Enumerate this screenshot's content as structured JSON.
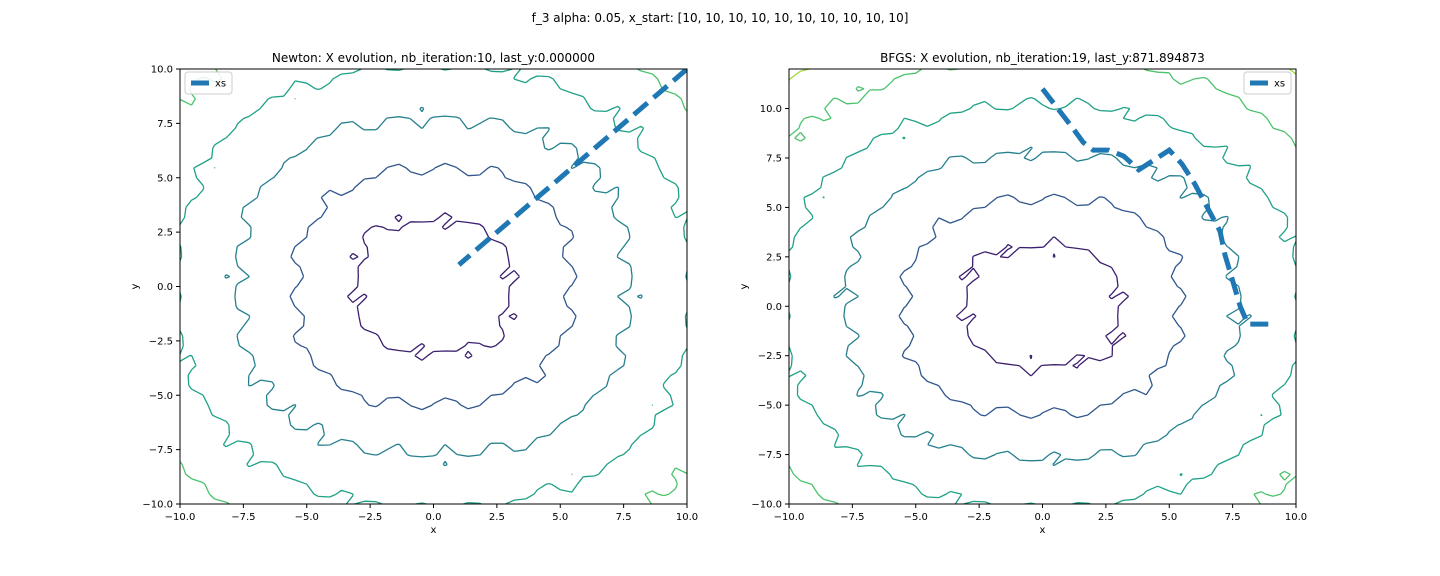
{
  "figure": {
    "suptitle": "f_3 alpha: 0.05, x_start: [10, 10, 10, 10, 10, 10, 10, 10, 10, 10]"
  },
  "chart_data": [
    {
      "type": "line",
      "title": "Newton: X evolution, nb_iteration:10, last_y:0.000000",
      "xlabel": "x",
      "ylabel": "y",
      "xlim": [
        -10,
        10
      ],
      "ylim": [
        -10,
        10
      ],
      "xticks": [
        -10,
        -7.5,
        -5,
        -2.5,
        0,
        2.5,
        5,
        7.5,
        10
      ],
      "xtick_labels": [
        "−10.0",
        "−7.5",
        "−5.0",
        "−2.5",
        "0.0",
        "2.5",
        "5.0",
        "7.5",
        "10.0"
      ],
      "yticks": [
        -10,
        -7.5,
        -5,
        -2.5,
        0,
        2.5,
        5,
        7.5,
        10
      ],
      "ytick_labels": [
        "−10.0",
        "−7.5",
        "−5.0",
        "−2.5",
        "0.0",
        "2.5",
        "5.0",
        "7.5",
        "10.0"
      ],
      "legend": {
        "location": "upper-left",
        "entries": [
          "xs"
        ]
      },
      "grid": false,
      "contour": {
        "levels": [
          "#3b1f6e",
          "#30568c",
          "#25808e",
          "#1fa187",
          "#4cc26c",
          "#a0da39"
        ]
      },
      "series": [
        {
          "name": "xs",
          "style": "dashed",
          "color": "#1f77b4",
          "x": [
            10,
            9.0,
            8.0,
            7.0,
            6.0,
            5.0,
            4.0,
            3.0,
            2.0,
            1.0
          ],
          "y": [
            10,
            9.0,
            8.0,
            7.0,
            6.0,
            5.0,
            4.0,
            3.0,
            2.0,
            1.0
          ]
        }
      ]
    },
    {
      "type": "line",
      "title": "BFGS: X evolution, nb_iteration:19, last_y:871.894873",
      "xlabel": "x",
      "ylabel": "y",
      "xlim": [
        -10,
        10
      ],
      "ylim": [
        -10,
        12
      ],
      "xticks": [
        -10,
        -7.5,
        -5,
        -2.5,
        0,
        2.5,
        5,
        7.5,
        10
      ],
      "xtick_labels": [
        "−10.0",
        "−7.5",
        "−5.0",
        "−2.5",
        "0.0",
        "2.5",
        "5.0",
        "7.5",
        "10.0"
      ],
      "yticks": [
        -10,
        -7.5,
        -5,
        -2.5,
        0,
        2.5,
        5,
        7.5,
        10
      ],
      "ytick_labels": [
        "−10.0",
        "−7.5",
        "−5.0",
        "−2.5",
        "0.0",
        "2.5",
        "5.0",
        "7.5",
        "10.0"
      ],
      "legend": {
        "location": "upper-right",
        "entries": [
          "xs"
        ]
      },
      "grid": false,
      "contour": {
        "levels": [
          "#3b1f6e",
          "#30568c",
          "#25808e",
          "#1fa187",
          "#4cc26c",
          "#a0da39"
        ]
      },
      "series": [
        {
          "name": "xs",
          "style": "dashed",
          "color": "#1f77b4",
          "x": [
            0.0,
            0.6,
            1.2,
            1.6,
            2.0,
            2.6,
            3.2,
            3.8,
            4.4,
            5.0,
            5.5,
            6.0,
            6.5,
            7.0,
            7.2,
            7.5,
            7.8,
            8.1,
            8.5,
            9.0
          ],
          "y": [
            11.0,
            10.0,
            9.0,
            8.3,
            7.9,
            7.9,
            7.6,
            6.9,
            7.4,
            7.9,
            7.2,
            6.2,
            5.0,
            3.8,
            2.6,
            1.3,
            0.0,
            -0.9,
            -0.9,
            -0.9
          ]
        }
      ]
    }
  ]
}
